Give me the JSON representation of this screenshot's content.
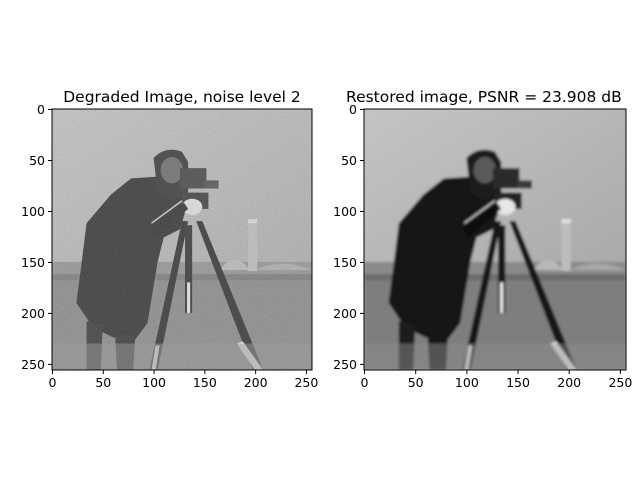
{
  "figure": {
    "colormap": "gray",
    "background_color": "#ffffff",
    "text_color": "#000000"
  },
  "chart_data": [
    {
      "type": "heatmap",
      "title": "Degraded Image, noise level 2",
      "xlabel": "",
      "ylabel": "",
      "xlim": [
        0,
        255
      ],
      "ylim": [
        255,
        0
      ],
      "x_ticks": [
        0,
        50,
        100,
        150,
        200,
        250
      ],
      "y_ticks": [
        0,
        50,
        100,
        150,
        200,
        250
      ],
      "x_tick_labels": [
        "0",
        "50",
        "100",
        "150",
        "200",
        "250"
      ],
      "y_tick_labels": [
        "0",
        "50",
        "100",
        "150",
        "200",
        "250"
      ],
      "grid": false,
      "legend": "none",
      "image": "grayscale photograph (cameraman with tripod camera) with heavy noise"
    },
    {
      "type": "heatmap",
      "title": "Restored image, PSNR = 23.908 dB",
      "xlabel": "",
      "ylabel": "",
      "xlim": [
        0,
        255
      ],
      "ylim": [
        255,
        0
      ],
      "x_ticks": [
        0,
        50,
        100,
        150,
        200,
        250
      ],
      "y_ticks": [
        0,
        50,
        100,
        150,
        200,
        250
      ],
      "x_tick_labels": [
        "0",
        "50",
        "100",
        "150",
        "200",
        "250"
      ],
      "y_tick_labels": [
        "0",
        "50",
        "100",
        "150",
        "200",
        "250"
      ],
      "grid": false,
      "legend": "none",
      "psnr_db": 23.908,
      "image": "grayscale photograph (cameraman with tripod camera), smoothed/restored"
    }
  ]
}
